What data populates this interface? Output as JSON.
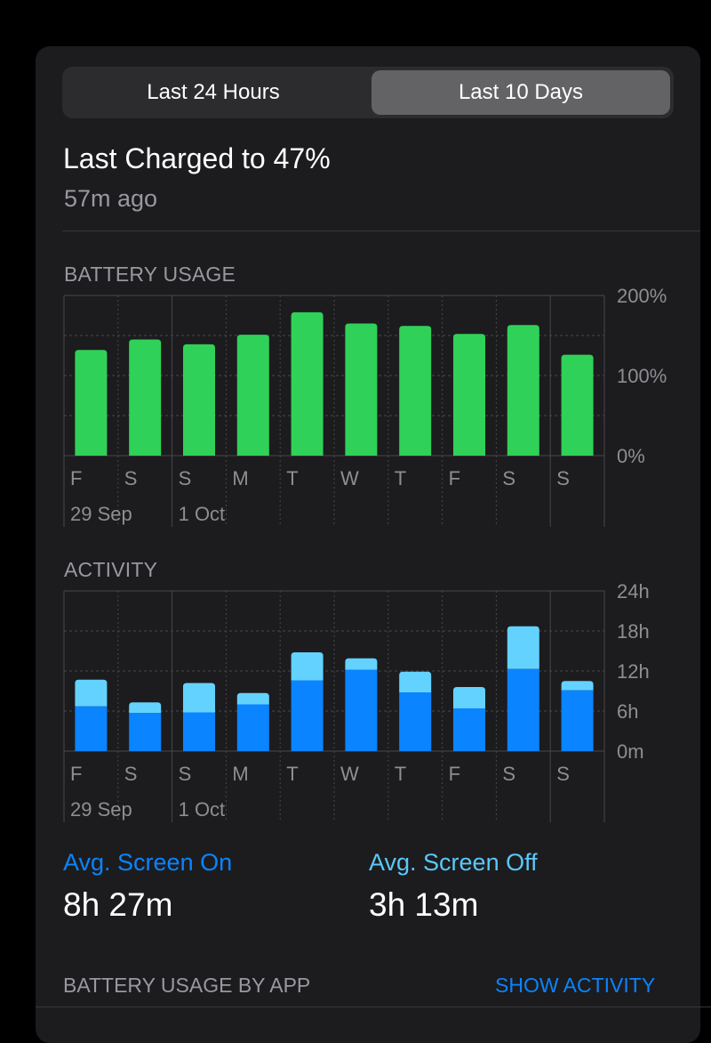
{
  "segmented": {
    "options": [
      "Last 24 Hours",
      "Last 10 Days"
    ],
    "selected": "Last 10 Days"
  },
  "last_charged": {
    "title": "Last Charged to 47%",
    "subtitle": "57m ago"
  },
  "battery_usage_title": "BATTERY USAGE",
  "activity_title": "ACTIVITY",
  "colors": {
    "battery_bar": "#30d158",
    "screen_on": "#0a84ff",
    "screen_off": "#64d2ff",
    "grid": "#48484a",
    "axis_text": "#8e8e93"
  },
  "chart_data": [
    {
      "type": "bar",
      "title": "BATTERY USAGE",
      "categories": [
        "F",
        "S",
        "S",
        "M",
        "T",
        "W",
        "T",
        "F",
        "S",
        "S"
      ],
      "date_labels": [
        "29 Sep",
        "1 Oct"
      ],
      "y_ticks": [
        "200%",
        "100%",
        "0%"
      ],
      "ylim": [
        0,
        200
      ],
      "values": [
        132,
        145,
        139,
        151,
        179,
        165,
        162,
        152,
        163,
        126
      ]
    },
    {
      "type": "bar",
      "stacked": true,
      "title": "ACTIVITY",
      "categories": [
        "F",
        "S",
        "S",
        "M",
        "T",
        "W",
        "T",
        "F",
        "S",
        "S"
      ],
      "date_labels": [
        "29 Sep",
        "1 Oct"
      ],
      "y_ticks": [
        "24h",
        "18h",
        "12h",
        "6h",
        "0m"
      ],
      "ylim": [
        0,
        24
      ],
      "series": [
        {
          "values": [
            6.7,
            5.7,
            5.8,
            7.0,
            10.6,
            12.2,
            8.8,
            6.4,
            12.3,
            9.1
          ]
        },
        {
          "values": [
            4.0,
            1.6,
            4.4,
            1.7,
            4.2,
            1.7,
            3.1,
            3.2,
            6.4,
            1.4
          ]
        }
      ]
    }
  ],
  "stats": {
    "screen_on_label": "Avg. Screen On",
    "screen_on_value": "8h 27m",
    "screen_off_label": "Avg. Screen Off",
    "screen_off_value": "3h 13m"
  },
  "footer": {
    "label": "BATTERY USAGE BY APP",
    "link": "SHOW ACTIVITY"
  }
}
